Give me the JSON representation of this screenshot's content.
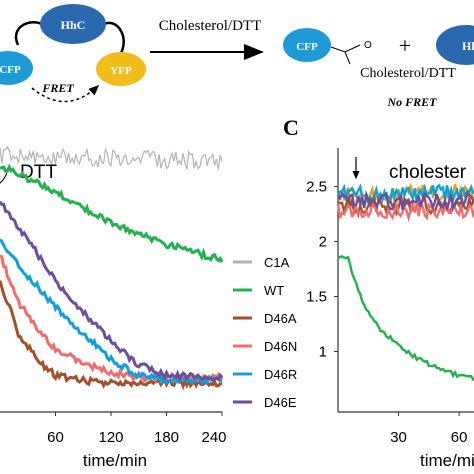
{
  "schematic": {
    "hhc_label": "HhC",
    "cfp_label": "CFP",
    "yfp_label": "YFP",
    "fret_label": "FRET",
    "reaction_label": "Cholesterol/DTT",
    "product_cfp_label": "CFP",
    "product_adduct_label": "Cholesterol/DTT",
    "plus_sign": "+",
    "product_hhc_label": "Hh",
    "no_fret_label": "No FRET",
    "colors": {
      "hhc": "#2a69ad",
      "cfp": "#1e9ad6",
      "yfp": "#f1bd1b"
    }
  },
  "panel_c_label": "C",
  "chart_data": [
    {
      "type": "line",
      "panel": "B (partial)",
      "annotation": "DTT",
      "xlabel": "time/min",
      "x_ticks": [
        60,
        120,
        180,
        240
      ],
      "xlim": [
        0,
        240
      ],
      "legend_position": "right",
      "series": [
        {
          "name": "C1A",
          "color": "#b3b3b3",
          "x": [
            0,
            60,
            120,
            180,
            240
          ],
          "y": [
            0.98,
            0.97,
            0.97,
            0.96,
            0.96
          ]
        },
        {
          "name": "WT",
          "color": "#22b14c",
          "x": [
            0,
            60,
            120,
            180,
            240
          ],
          "y": [
            0.94,
            0.84,
            0.72,
            0.64,
            0.58
          ]
        },
        {
          "name": "D46A",
          "color": "#a0522d",
          "x": [
            0,
            20,
            40,
            60,
            90,
            120,
            180,
            240
          ],
          "y": [
            0.5,
            0.3,
            0.2,
            0.14,
            0.12,
            0.11,
            0.11,
            0.11
          ]
        },
        {
          "name": "D46N",
          "color": "#f06d6d",
          "x": [
            0,
            20,
            40,
            60,
            90,
            120,
            150,
            180,
            240
          ],
          "y": [
            0.6,
            0.42,
            0.32,
            0.24,
            0.19,
            0.15,
            0.13,
            0.13,
            0.13
          ]
        },
        {
          "name": "D46R",
          "color": "#0fa0dc",
          "x": [
            0,
            30,
            60,
            90,
            120,
            150,
            180,
            240
          ],
          "y": [
            0.66,
            0.52,
            0.4,
            0.3,
            0.2,
            0.14,
            0.12,
            0.12
          ]
        },
        {
          "name": "D46E",
          "color": "#6d4e9a",
          "x": [
            0,
            30,
            60,
            90,
            120,
            150,
            180,
            240
          ],
          "y": [
            0.8,
            0.66,
            0.5,
            0.38,
            0.27,
            0.18,
            0.14,
            0.13
          ]
        }
      ]
    },
    {
      "type": "line",
      "panel": "C",
      "annotation": "cholester",
      "xlabel": "time/min",
      "x_ticks": [
        30,
        60
      ],
      "y_ticks": [
        1,
        1.5,
        2,
        2.5
      ],
      "xlim": [
        0,
        75
      ],
      "ylim": [
        0.45,
        2.85
      ],
      "series": [
        {
          "color": "#e6a11a",
          "x": [
            0,
            10,
            20,
            30,
            40,
            50,
            60,
            75
          ],
          "y": [
            2.46,
            2.4,
            2.44,
            2.41,
            2.45,
            2.42,
            2.46,
            2.44
          ]
        },
        {
          "color": "#0fa0dc",
          "x": [
            0,
            10,
            20,
            30,
            40,
            50,
            60,
            75
          ],
          "y": [
            2.45,
            2.43,
            2.42,
            2.44,
            2.42,
            2.45,
            2.43,
            2.45
          ]
        },
        {
          "color": "#a0522d",
          "x": [
            0,
            10,
            20,
            30,
            40,
            50,
            60,
            75
          ],
          "y": [
            2.35,
            2.31,
            2.33,
            2.32,
            2.34,
            2.31,
            2.33,
            2.32
          ]
        },
        {
          "color": "#f06d6d",
          "x": [
            0,
            10,
            20,
            30,
            40,
            50,
            60,
            75
          ],
          "y": [
            2.28,
            2.27,
            2.29,
            2.27,
            2.28,
            2.27,
            2.28,
            2.28
          ]
        },
        {
          "color": "#6d4e9a",
          "x": [
            0,
            10,
            20,
            30,
            40,
            50,
            60,
            75
          ],
          "y": [
            2.38,
            2.36,
            2.38,
            2.35,
            2.37,
            2.36,
            2.38,
            2.37
          ]
        },
        {
          "color": "#22b14c",
          "x": [
            0,
            5,
            10,
            15,
            20,
            30,
            40,
            50,
            60,
            75
          ],
          "y": [
            1.86,
            1.84,
            1.55,
            1.36,
            1.22,
            1.05,
            0.93,
            0.84,
            0.78,
            0.74
          ]
        }
      ]
    }
  ]
}
